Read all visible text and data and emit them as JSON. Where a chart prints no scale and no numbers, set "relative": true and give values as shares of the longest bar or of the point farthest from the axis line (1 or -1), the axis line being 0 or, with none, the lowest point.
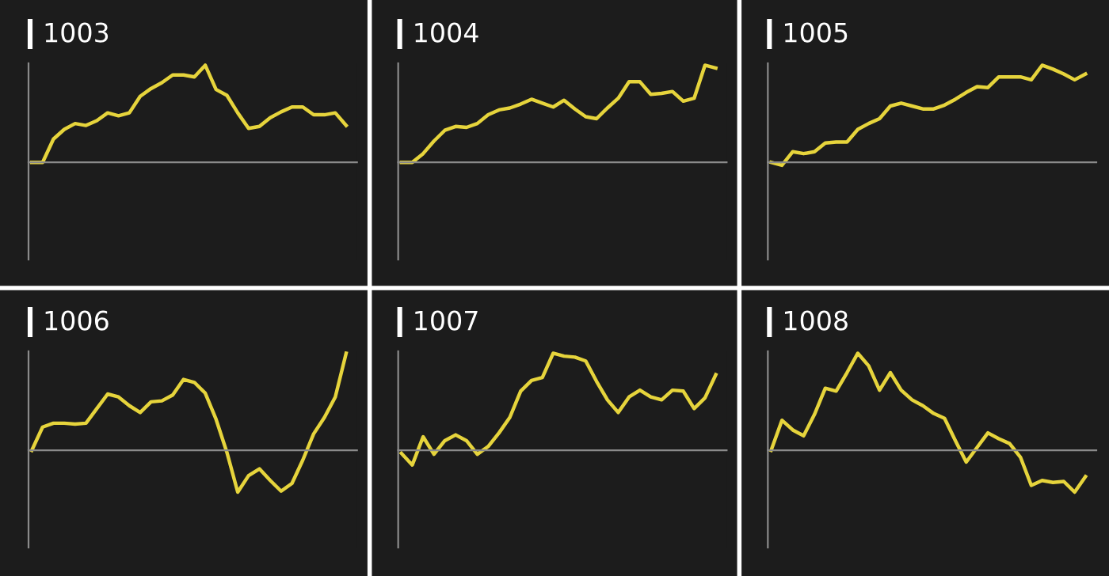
{
  "chart_data": [
    {
      "type": "line",
      "title": "1003",
      "relative": true,
      "categories": [
        null,
        null,
        null,
        null,
        null,
        null,
        null,
        null,
        null,
        null,
        null,
        null,
        null,
        null,
        null,
        null,
        null,
        null,
        null,
        null,
        null,
        null,
        null,
        null,
        null,
        null,
        null,
        null,
        null,
        null
      ],
      "series": [
        {
          "color": "#e6d43c",
          "values": [
            0,
            0,
            0.24,
            0.34,
            0.4,
            0.38,
            0.43,
            0.51,
            0.48,
            0.51,
            0.68,
            0.76,
            0.82,
            0.9,
            0.9,
            0.88,
            1,
            0.75,
            0.69,
            0.51,
            0.35,
            0.37,
            0.46,
            0.52,
            0.57,
            0.57,
            0.49,
            0.49,
            0.51,
            0.38
          ]
        }
      ]
    },
    {
      "type": "line",
      "title": "1004",
      "relative": true,
      "categories": [
        null,
        null,
        null,
        null,
        null,
        null,
        null,
        null,
        null,
        null,
        null,
        null,
        null,
        null,
        null,
        null,
        null,
        null,
        null,
        null,
        null,
        null,
        null,
        null,
        null,
        null,
        null,
        null,
        null,
        null
      ],
      "series": [
        {
          "color": "#e6d43c",
          "values": [
            0,
            0,
            0.09,
            0.22,
            0.33,
            0.37,
            0.36,
            0.4,
            0.49,
            0.54,
            0.56,
            0.6,
            0.65,
            0.61,
            0.57,
            0.64,
            0.55,
            0.47,
            0.45,
            0.56,
            0.66,
            0.83,
            0.83,
            0.7,
            0.71,
            0.73,
            0.63,
            0.66,
            1,
            0.97
          ]
        }
      ]
    },
    {
      "type": "line",
      "title": "1005",
      "relative": true,
      "categories": [
        null,
        null,
        null,
        null,
        null,
        null,
        null,
        null,
        null,
        null,
        null,
        null,
        null,
        null,
        null,
        null,
        null,
        null,
        null,
        null,
        null,
        null,
        null,
        null,
        null,
        null,
        null,
        null,
        null,
        null
      ],
      "series": [
        {
          "color": "#e6d43c",
          "values": [
            0,
            -0.03,
            0.11,
            0.09,
            0.11,
            0.2,
            0.21,
            0.21,
            0.34,
            0.4,
            0.45,
            0.58,
            0.61,
            0.58,
            0.55,
            0.55,
            0.59,
            0.65,
            0.72,
            0.78,
            0.77,
            0.88,
            0.88,
            0.88,
            0.85,
            1,
            0.96,
            0.91,
            0.85,
            0.91
          ]
        }
      ]
    },
    {
      "type": "line",
      "title": "1006",
      "relative": true,
      "categories": [
        null,
        null,
        null,
        null,
        null,
        null,
        null,
        null,
        null,
        null,
        null,
        null,
        null,
        null,
        null,
        null,
        null,
        null,
        null,
        null,
        null,
        null,
        null,
        null,
        null,
        null,
        null,
        null,
        null,
        null
      ],
      "series": [
        {
          "color": "#e6d43c",
          "values": [
            0,
            0.24,
            0.28,
            0.28,
            0.27,
            0.28,
            0.43,
            0.58,
            0.55,
            0.46,
            0.39,
            0.5,
            0.51,
            0.57,
            0.73,
            0.7,
            0.59,
            0.32,
            -0.02,
            -0.43,
            -0.26,
            -0.19,
            -0.31,
            -0.42,
            -0.34,
            -0.1,
            0.17,
            0.34,
            0.55,
            1
          ]
        }
      ]
    },
    {
      "type": "line",
      "title": "1007",
      "relative": true,
      "categories": [
        null,
        null,
        null,
        null,
        null,
        null,
        null,
        null,
        null,
        null,
        null,
        null,
        null,
        null,
        null,
        null,
        null,
        null,
        null,
        null,
        null,
        null,
        null,
        null,
        null,
        null,
        null,
        null,
        null,
        null
      ],
      "series": [
        {
          "color": "#e6d43c",
          "values": [
            -0.03,
            -0.15,
            0.14,
            -0.04,
            0.1,
            0.16,
            0.1,
            -0.04,
            0.04,
            0.18,
            0.34,
            0.61,
            0.72,
            0.75,
            1,
            0.97,
            0.96,
            0.92,
            0.71,
            0.52,
            0.39,
            0.55,
            0.62,
            0.55,
            0.52,
            0.62,
            0.61,
            0.43,
            0.54,
            0.78
          ]
        }
      ]
    },
    {
      "type": "line",
      "title": "1008",
      "relative": true,
      "categories": [
        null,
        null,
        null,
        null,
        null,
        null,
        null,
        null,
        null,
        null,
        null,
        null,
        null,
        null,
        null,
        null,
        null,
        null,
        null,
        null,
        null,
        null,
        null,
        null,
        null,
        null,
        null,
        null,
        null,
        null
      ],
      "series": [
        {
          "color": "#e6d43c",
          "values": [
            0,
            0.31,
            0.21,
            0.15,
            0.37,
            0.64,
            0.61,
            0.8,
            1,
            0.87,
            0.62,
            0.8,
            0.62,
            0.52,
            0.46,
            0.38,
            0.33,
            0.1,
            -0.12,
            0.03,
            0.18,
            0.12,
            0.07,
            -0.07,
            -0.36,
            -0.31,
            -0.33,
            -0.32,
            -0.43,
            -0.27
          ]
        }
      ]
    }
  ]
}
